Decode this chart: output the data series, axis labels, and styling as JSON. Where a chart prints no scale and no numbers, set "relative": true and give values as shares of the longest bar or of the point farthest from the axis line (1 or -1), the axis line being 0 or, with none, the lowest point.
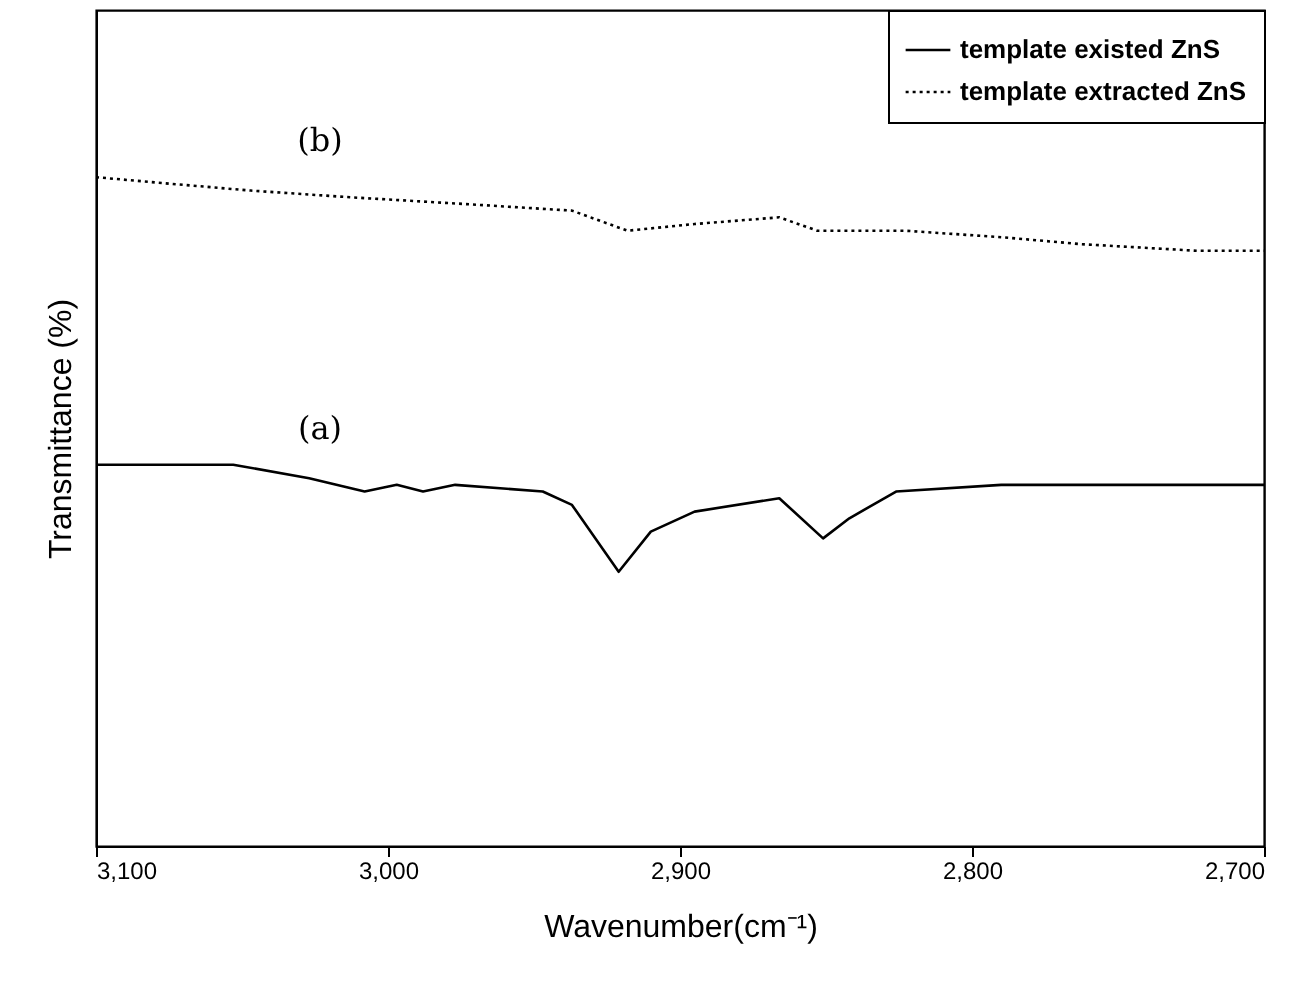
{
  "chart_data": {
    "type": "line",
    "relative": true,
    "xlabel": "Wavenumber(cm⁻¹)",
    "ylabel": "Transmittance (%)",
    "xlim": [
      3100,
      2700
    ],
    "xticks": [
      {
        "value": 3100,
        "label": "3,100"
      },
      {
        "value": 3000,
        "label": "3,000"
      },
      {
        "value": 2900,
        "label": "2,900"
      },
      {
        "value": 2800,
        "label": "2,800"
      },
      {
        "value": 2700,
        "label": "2,700"
      }
    ],
    "legend": "top right",
    "grid": false,
    "annotations": [
      "(a)",
      "(b)"
    ],
    "series": [
      {
        "name": "template existed ZnS",
        "color": "#000000",
        "line_style": "solid",
        "x": [
          3100,
          3053,
          3027,
          3008,
          2997,
          2988,
          2977,
          2947,
          2937,
          2921,
          2910,
          2895,
          2866,
          2851,
          2842,
          2826,
          2790,
          2700
        ],
        "values": [
          0.57,
          0.57,
          0.55,
          0.53,
          0.54,
          0.53,
          0.54,
          0.53,
          0.51,
          0.41,
          0.47,
          0.5,
          0.52,
          0.46,
          0.49,
          0.53,
          0.54,
          0.54
        ]
      },
      {
        "name": "template extracted ZnS",
        "color": "#000000",
        "line_style": "dotted",
        "x": [
          3100,
          3074,
          3047,
          3013,
          2974,
          2937,
          2918,
          2895,
          2866,
          2853,
          2823,
          2789,
          2763,
          2723,
          2700
        ],
        "values": [
          1.0,
          0.99,
          0.98,
          0.97,
          0.96,
          0.95,
          0.92,
          0.93,
          0.94,
          0.92,
          0.92,
          0.91,
          0.9,
          0.89,
          0.89
        ]
      }
    ]
  }
}
